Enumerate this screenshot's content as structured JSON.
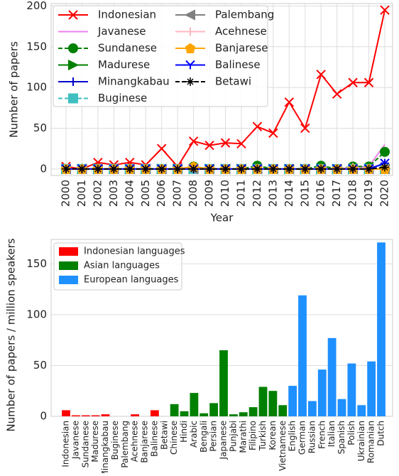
{
  "chart_data": [
    {
      "type": "line",
      "xlabel": "Year",
      "ylabel": "Number of papers",
      "categories": [
        "2000",
        "2001",
        "2002",
        "2003",
        "2004",
        "2005",
        "2006",
        "2007",
        "2008",
        "2009",
        "2010",
        "2011",
        "2012",
        "2013",
        "2014",
        "2015",
        "2016",
        "2017",
        "2018",
        "2019",
        "2020"
      ],
      "ylim": [
        -8,
        203
      ],
      "yticks": [
        0,
        50,
        100,
        150,
        200
      ],
      "grid": true,
      "series": [
        {
          "name": "Indonesian",
          "color": "#ff0000",
          "marker": "x",
          "dash": false,
          "values": [
            3,
            0,
            8,
            5,
            8,
            5,
            25,
            3,
            34,
            29,
            32,
            31,
            52,
            44,
            82,
            50,
            116,
            92,
            106,
            106,
            195
          ]
        },
        {
          "name": "Javanese",
          "color": "#ee82ee",
          "marker": "none",
          "dash": false,
          "values": [
            0,
            0,
            0,
            0,
            0,
            0,
            0,
            0,
            3,
            0,
            0,
            0,
            0,
            0,
            0,
            0,
            0,
            0,
            2,
            3,
            30
          ]
        },
        {
          "name": "Sundanese",
          "color": "#008000",
          "marker": "o",
          "dash": true,
          "values": [
            0,
            0,
            0,
            0,
            0,
            0,
            0,
            0,
            3,
            0,
            0,
            0,
            4,
            0,
            0,
            0,
            4,
            0,
            3,
            3,
            21
          ]
        },
        {
          "name": "Madurese",
          "color": "#008000",
          "marker": ">",
          "dash": false,
          "values": [
            0,
            0,
            0,
            0,
            0,
            0,
            0,
            0,
            0,
            0,
            0,
            0,
            0,
            0,
            0,
            0,
            0,
            0,
            0,
            0,
            0
          ]
        },
        {
          "name": "Minangkabau",
          "color": "#0000cd",
          "marker": "+",
          "dash": false,
          "values": [
            0,
            0,
            0,
            0,
            0,
            0,
            0,
            0,
            0,
            0,
            0,
            0,
            0,
            0,
            0,
            0,
            0,
            0,
            0,
            0,
            7
          ]
        },
        {
          "name": "Buginese",
          "color": "#40bfc0",
          "marker": "s",
          "dash": true,
          "values": [
            0,
            0,
            0,
            0,
            0,
            0,
            0,
            0,
            0,
            0,
            0,
            0,
            0,
            0,
            0,
            0,
            0,
            0,
            0,
            0,
            0
          ]
        },
        {
          "name": "Palembang",
          "color": "#808080",
          "marker": "<",
          "dash": false,
          "values": [
            0,
            0,
            0,
            0,
            0,
            0,
            0,
            0,
            0,
            0,
            0,
            0,
            0,
            0,
            0,
            0,
            0,
            0,
            0,
            0,
            0
          ]
        },
        {
          "name": "Acehnese",
          "color": "#ffb6c1",
          "marker": "+",
          "dash": false,
          "values": [
            0,
            0,
            0,
            0,
            0,
            0,
            0,
            0,
            0,
            0,
            0,
            0,
            0,
            0,
            0,
            0,
            0,
            0,
            2,
            0,
            0
          ]
        },
        {
          "name": "Banjarese",
          "color": "#ffa500",
          "marker": "p",
          "dash": false,
          "values": [
            0,
            0,
            0,
            0,
            0,
            0,
            0,
            0,
            3,
            0,
            0,
            0,
            0,
            0,
            0,
            0,
            0,
            0,
            0,
            0,
            0
          ]
        },
        {
          "name": "Balinese",
          "color": "#0000ff",
          "marker": "1",
          "dash": false,
          "values": [
            0,
            0,
            0,
            0,
            0,
            0,
            0,
            0,
            0,
            0,
            0,
            0,
            0,
            0,
            0,
            0,
            0,
            0,
            0,
            0,
            7
          ]
        },
        {
          "name": "Betawi",
          "color": "#000000",
          "marker": "*",
          "dash": true,
          "values": [
            0,
            0,
            0,
            0,
            0,
            0,
            0,
            0,
            0,
            0,
            0,
            0,
            0,
            0,
            0,
            0,
            0,
            0,
            0,
            0,
            2
          ]
        }
      ]
    },
    {
      "type": "bar",
      "ylabel": "Number of papers / million speakers",
      "categories": [
        "Indonesian",
        "Javanese",
        "Sundanese",
        "Madurese",
        "Minangkabau",
        "Buginese",
        "Palembang",
        "Acehnese",
        "Banjarese",
        "Balinese",
        "Betawi",
        "Chinese",
        "Hindi",
        "Arabic",
        "Bengali",
        "Persian",
        "Japanese",
        "Punjabi",
        "Marathi",
        "Filipino",
        "Turkish",
        "Korean",
        "Vietnamese",
        "English",
        "German",
        "Russian",
        "French",
        "Italian",
        "Spanish",
        "Polish",
        "Ukrainian",
        "Romanian",
        "Dutch"
      ],
      "ylim": [
        0,
        174
      ],
      "yticks": [
        0,
        50,
        100,
        150
      ],
      "grid": true,
      "series": [
        {
          "name": "Indonesian languages",
          "color": "#ff0000",
          "values": [
            6,
            1,
            1,
            1,
            2,
            0,
            0,
            2,
            0,
            6,
            0,
            null,
            null,
            null,
            null,
            null,
            null,
            null,
            null,
            null,
            null,
            null,
            null,
            null,
            null,
            null,
            null,
            null,
            null,
            null,
            null,
            null,
            null
          ]
        },
        {
          "name": "Asian languages",
          "color": "#008000",
          "values": [
            null,
            null,
            null,
            null,
            null,
            null,
            null,
            null,
            null,
            null,
            null,
            12,
            5,
            23,
            3,
            13,
            65,
            2,
            4,
            9,
            29,
            25,
            11,
            null,
            null,
            null,
            null,
            null,
            null,
            null,
            null,
            null,
            null
          ]
        },
        {
          "name": "European languages",
          "color": "#1e90ff",
          "values": [
            null,
            null,
            null,
            null,
            null,
            null,
            null,
            null,
            null,
            null,
            null,
            null,
            null,
            null,
            null,
            null,
            null,
            null,
            null,
            null,
            null,
            null,
            null,
            30,
            119,
            15,
            46,
            77,
            17,
            52,
            11,
            54,
            171
          ]
        }
      ]
    }
  ]
}
